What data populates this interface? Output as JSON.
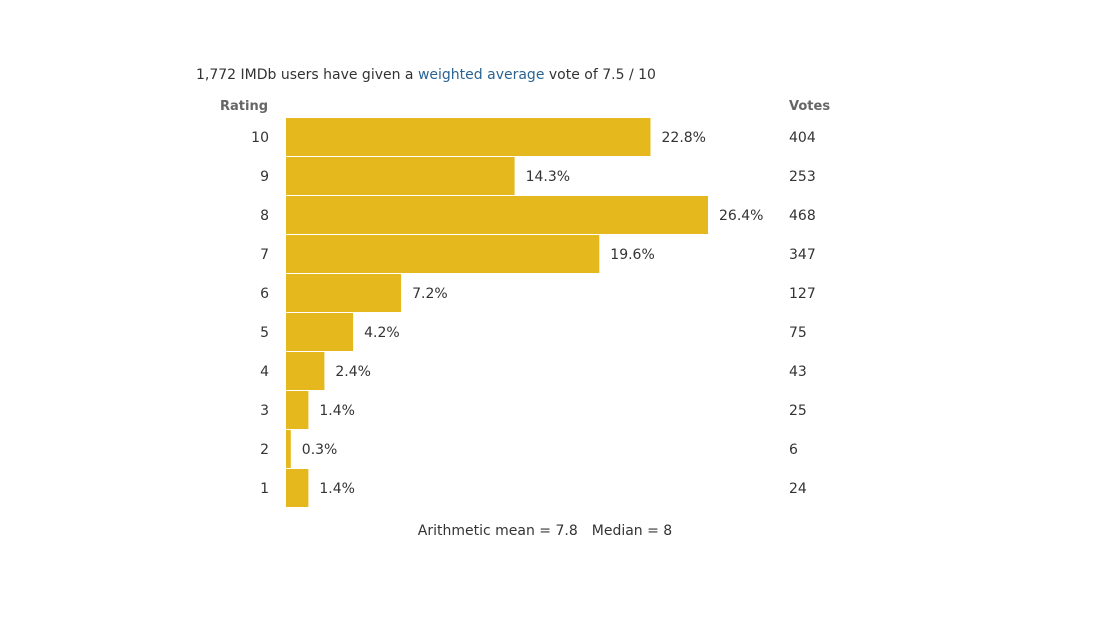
{
  "summary": {
    "before": "1,772 IMDb users have given a ",
    "link": "weighted average",
    "after": " vote of 7.5 / 10"
  },
  "headers": {
    "rating": "Rating",
    "votes": "Votes"
  },
  "stats": {
    "mean": "Arithmetic mean = 7.8",
    "median": "Median = 8"
  },
  "colors": {
    "bar": "#e5b81e",
    "link": "#2b6393"
  },
  "chart_data": {
    "type": "bar",
    "orientation": "horizontal",
    "categories": [
      "10",
      "9",
      "8",
      "7",
      "6",
      "5",
      "4",
      "3",
      "2",
      "1"
    ],
    "values": [
      22.8,
      14.3,
      26.4,
      19.6,
      7.2,
      4.2,
      2.4,
      1.4,
      0.3,
      1.4
    ],
    "value_labels": [
      "22.8%",
      "14.3%",
      "26.4%",
      "19.6%",
      "7.2%",
      "4.2%",
      "2.4%",
      "1.4%",
      "0.3%",
      "1.4%"
    ],
    "votes": [
      "404",
      "253",
      "468",
      "347",
      "127",
      "75",
      "43",
      "25",
      "6",
      "24"
    ],
    "xlim": [
      0,
      26.4
    ],
    "grid": false,
    "legend": "none"
  }
}
